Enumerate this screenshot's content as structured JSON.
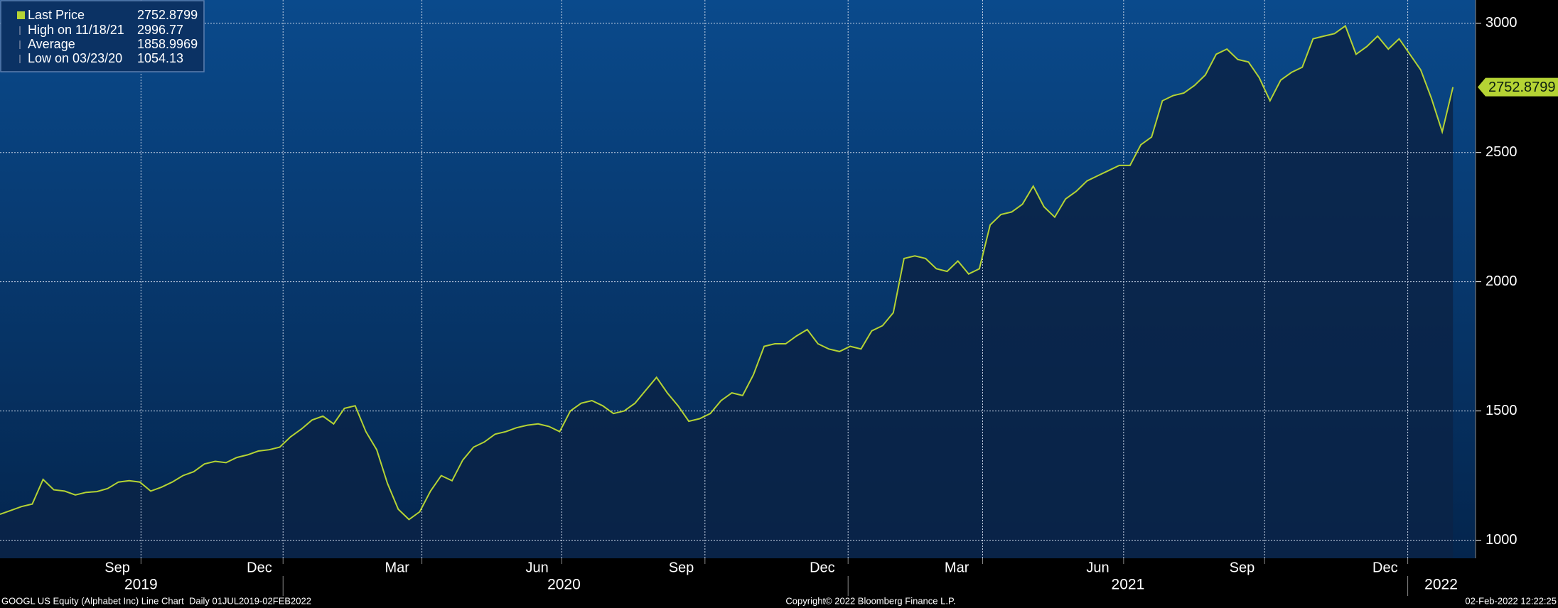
{
  "chart_data": {
    "type": "line",
    "legend": [
      {
        "label": "Last Price",
        "value": 2752.8799
      },
      {
        "label": "High on 11/18/21",
        "value": 2996.77
      },
      {
        "label": "Average",
        "value": 1858.9969
      },
      {
        "label": "Low on 03/23/20",
        "value": 1054.13
      }
    ],
    "color": "#b5d334",
    "values": [
      1100,
      1115,
      1130,
      1140,
      1235,
      1195,
      1190,
      1175,
      1185,
      1188,
      1200,
      1225,
      1230,
      1225,
      1190,
      1205,
      1225,
      1250,
      1265,
      1295,
      1305,
      1300,
      1320,
      1330,
      1345,
      1350,
      1360,
      1400,
      1430,
      1465,
      1480,
      1450,
      1510,
      1520,
      1420,
      1350,
      1220,
      1120,
      1080,
      1110,
      1190,
      1250,
      1230,
      1310,
      1360,
      1380,
      1410,
      1420,
      1435,
      1445,
      1450,
      1440,
      1420,
      1500,
      1530,
      1540,
      1520,
      1490,
      1500,
      1530,
      1580,
      1630,
      1570,
      1520,
      1460,
      1470,
      1490,
      1540,
      1570,
      1560,
      1640,
      1750,
      1760,
      1760,
      1790,
      1815,
      1760,
      1740,
      1730,
      1750,
      1740,
      1810,
      1830,
      1880,
      2090,
      2100,
      2090,
      2050,
      2040,
      2080,
      2030,
      2050,
      2220,
      2260,
      2270,
      2300,
      2370,
      2290,
      2250,
      2320,
      2350,
      2390,
      2410,
      2430,
      2450,
      2450,
      2530,
      2560,
      2700,
      2720,
      2730,
      2760,
      2800,
      2880,
      2900,
      2860,
      2850,
      2790,
      2700,
      2780,
      2810,
      2830,
      2940,
      2950,
      2960,
      2990,
      2880,
      2910,
      2950,
      2900,
      2940,
      2880,
      2820,
      2710,
      2580,
      2752.8799
    ],
    "xlim": [
      0,
      137.1
    ],
    "xticks": [
      {
        "value": 10.9,
        "label": "Sep"
      },
      {
        "value": 24.1,
        "label": "Dec"
      },
      {
        "value": 36.9,
        "label": "Mar"
      },
      {
        "value": 49.9,
        "label": "Jun"
      },
      {
        "value": 63.3,
        "label": "Sep"
      },
      {
        "value": 76.4,
        "label": "Dec"
      },
      {
        "value": 88.9,
        "label": "Mar"
      },
      {
        "value": 102,
        "label": "Jun"
      },
      {
        "value": 115.4,
        "label": "Sep"
      },
      {
        "value": 128.7,
        "label": "Dec"
      }
    ],
    "xgrid": [
      13.1,
      26.3,
      39.2,
      52.2,
      65.5,
      78.8,
      91.3,
      104.4,
      117.5,
      130.8
    ],
    "year_ticks": [
      {
        "value": 13.1,
        "label": "2019"
      },
      {
        "value": 52.4,
        "label": "2020"
      },
      {
        "value": 104.8,
        "label": "2021"
      },
      {
        "value": 133.9,
        "label": "2022"
      }
    ],
    "year_breaks": [
      26.3,
      78.8,
      130.8
    ],
    "ylim": [
      930,
      3090
    ],
    "yticks": [
      1000,
      1500,
      2000,
      2500,
      3000
    ],
    "grid": true,
    "footer_left": "GOOGL US Equity (Alphabet Inc) Line Chart  Daily 01JUL2019-02FEB2022",
    "footer_center": "Copyright© 2022 Bloomberg Finance L.P.",
    "footer_right": "02-Feb-2022 12:22:25"
  }
}
